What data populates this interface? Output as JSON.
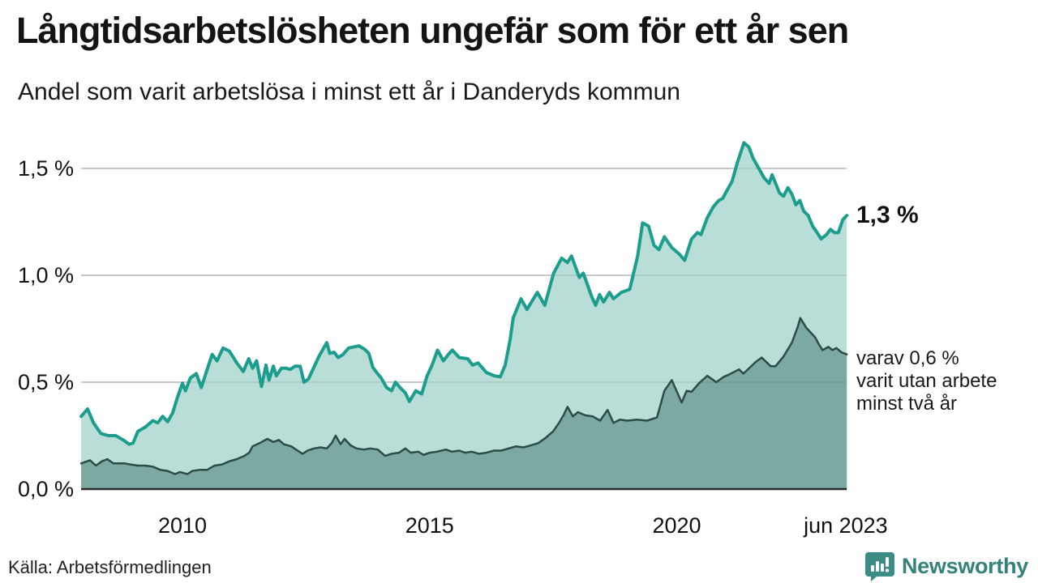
{
  "header": {
    "title": "Långtidsarbetslösheten ungefär som för ett år sen",
    "subtitle": "Andel som varit arbetslösa i minst ett år i Danderyds kommun"
  },
  "annotations": {
    "end_value_label": "1,3 %",
    "secondary_label_lines": [
      "varav 0,6 %",
      "varit utan arbete",
      "minst två år"
    ]
  },
  "footer": {
    "source": "Källa: Arbetsförmedlingen",
    "logo_text": "Newsworthy"
  },
  "colors": {
    "series1_line": "#1d9d8d",
    "series1_fill": "#b9ded8",
    "series2_line": "#2e4c46",
    "series2_fill": "#7ca9a1",
    "gridline": "#d9d9d9",
    "axis": "#2b2b2b",
    "brand_teal": "#35827b"
  },
  "chart_data": {
    "type": "area",
    "title": "Långtidsarbetslösheten ungefär som för ett år sen",
    "subtitle": "Andel som varit arbetslösa i minst ett år i Danderyds kommun",
    "unit": "%",
    "x_range": [
      2007.95,
      2023.44
    ],
    "ylim": [
      0,
      1.7
    ],
    "grid": true,
    "x_axis": {
      "ticks": [
        {
          "year": 2010,
          "label": "2010"
        },
        {
          "year": 2015,
          "label": "2015"
        },
        {
          "year": 2020,
          "label": "2020"
        },
        {
          "year": 2023.42,
          "label": "jun 2023"
        }
      ]
    },
    "y_axis": {
      "ticks": [
        {
          "value": 0,
          "label": "0,0 %"
        },
        {
          "value": 0.5,
          "label": "0,5 %"
        },
        {
          "value": 1.0,
          "label": "1,0 %"
        },
        {
          "value": 1.5,
          "label": "1,5 %"
        }
      ]
    },
    "series": [
      {
        "name": "Arbetslösa minst ett år",
        "end_value": 1.3,
        "line_color": "#1d9d8d",
        "fill_color": "#b9ded8",
        "points": [
          [
            2007.95,
            0.34
          ],
          [
            2008.08,
            0.375
          ],
          [
            2008.2,
            0.31
          ],
          [
            2008.35,
            0.26
          ],
          [
            2008.5,
            0.25
          ],
          [
            2008.65,
            0.25
          ],
          [
            2008.8,
            0.23
          ],
          [
            2008.92,
            0.21
          ],
          [
            2009.0,
            0.215
          ],
          [
            2009.1,
            0.27
          ],
          [
            2009.25,
            0.29
          ],
          [
            2009.4,
            0.32
          ],
          [
            2009.5,
            0.31
          ],
          [
            2009.6,
            0.34
          ],
          [
            2009.7,
            0.315
          ],
          [
            2009.8,
            0.355
          ],
          [
            2009.9,
            0.43
          ],
          [
            2010.0,
            0.495
          ],
          [
            2010.06,
            0.46
          ],
          [
            2010.16,
            0.52
          ],
          [
            2010.28,
            0.54
          ],
          [
            2010.38,
            0.475
          ],
          [
            2010.5,
            0.56
          ],
          [
            2010.6,
            0.63
          ],
          [
            2010.7,
            0.6
          ],
          [
            2010.82,
            0.66
          ],
          [
            2010.95,
            0.645
          ],
          [
            2011.1,
            0.59
          ],
          [
            2011.23,
            0.55
          ],
          [
            2011.34,
            0.61
          ],
          [
            2011.42,
            0.565
          ],
          [
            2011.5,
            0.6
          ],
          [
            2011.6,
            0.48
          ],
          [
            2011.69,
            0.58
          ],
          [
            2011.75,
            0.51
          ],
          [
            2011.84,
            0.575
          ],
          [
            2011.9,
            0.53
          ],
          [
            2012.0,
            0.565
          ],
          [
            2012.1,
            0.565
          ],
          [
            2012.18,
            0.56
          ],
          [
            2012.28,
            0.575
          ],
          [
            2012.38,
            0.575
          ],
          [
            2012.46,
            0.5
          ],
          [
            2012.55,
            0.515
          ],
          [
            2012.66,
            0.57
          ],
          [
            2012.76,
            0.62
          ],
          [
            2012.87,
            0.665
          ],
          [
            2012.92,
            0.685
          ],
          [
            2012.98,
            0.635
          ],
          [
            2013.07,
            0.64
          ],
          [
            2013.15,
            0.615
          ],
          [
            2013.25,
            0.63
          ],
          [
            2013.36,
            0.66
          ],
          [
            2013.47,
            0.665
          ],
          [
            2013.57,
            0.67
          ],
          [
            2013.68,
            0.655
          ],
          [
            2013.77,
            0.635
          ],
          [
            2013.85,
            0.57
          ],
          [
            2013.93,
            0.545
          ],
          [
            2014.02,
            0.52
          ],
          [
            2014.13,
            0.475
          ],
          [
            2014.23,
            0.46
          ],
          [
            2014.31,
            0.5
          ],
          [
            2014.4,
            0.475
          ],
          [
            2014.51,
            0.45
          ],
          [
            2014.59,
            0.41
          ],
          [
            2014.72,
            0.46
          ],
          [
            2014.84,
            0.445
          ],
          [
            2014.95,
            0.53
          ],
          [
            2015.05,
            0.58
          ],
          [
            2015.16,
            0.65
          ],
          [
            2015.28,
            0.6
          ],
          [
            2015.38,
            0.63
          ],
          [
            2015.46,
            0.65
          ],
          [
            2015.6,
            0.615
          ],
          [
            2015.77,
            0.61
          ],
          [
            2015.87,
            0.58
          ],
          [
            2015.98,
            0.59
          ],
          [
            2016.15,
            0.545
          ],
          [
            2016.31,
            0.53
          ],
          [
            2016.43,
            0.525
          ],
          [
            2016.53,
            0.58
          ],
          [
            2016.63,
            0.7
          ],
          [
            2016.69,
            0.8
          ],
          [
            2016.85,
            0.89
          ],
          [
            2016.97,
            0.84
          ],
          [
            2017.18,
            0.92
          ],
          [
            2017.33,
            0.86
          ],
          [
            2017.51,
            1.01
          ],
          [
            2017.67,
            1.08
          ],
          [
            2017.79,
            1.06
          ],
          [
            2017.87,
            1.09
          ],
          [
            2018.03,
            0.99
          ],
          [
            2018.11,
            1.01
          ],
          [
            2018.28,
            0.9
          ],
          [
            2018.36,
            0.86
          ],
          [
            2018.44,
            0.91
          ],
          [
            2018.52,
            0.875
          ],
          [
            2018.64,
            0.92
          ],
          [
            2018.72,
            0.89
          ],
          [
            2018.88,
            0.92
          ],
          [
            2019.05,
            0.935
          ],
          [
            2019.21,
            1.09
          ],
          [
            2019.31,
            1.245
          ],
          [
            2019.43,
            1.23
          ],
          [
            2019.54,
            1.14
          ],
          [
            2019.64,
            1.12
          ],
          [
            2019.75,
            1.18
          ],
          [
            2019.9,
            1.13
          ],
          [
            2020.05,
            1.1
          ],
          [
            2020.16,
            1.07
          ],
          [
            2020.3,
            1.17
          ],
          [
            2020.42,
            1.2
          ],
          [
            2020.49,
            1.19
          ],
          [
            2020.62,
            1.27
          ],
          [
            2020.74,
            1.32
          ],
          [
            2020.85,
            1.35
          ],
          [
            2020.93,
            1.36
          ],
          [
            2021.0,
            1.39
          ],
          [
            2021.12,
            1.44
          ],
          [
            2021.23,
            1.53
          ],
          [
            2021.36,
            1.62
          ],
          [
            2021.46,
            1.6
          ],
          [
            2021.54,
            1.55
          ],
          [
            2021.66,
            1.5
          ],
          [
            2021.77,
            1.455
          ],
          [
            2021.87,
            1.43
          ],
          [
            2021.93,
            1.47
          ],
          [
            2022.08,
            1.385
          ],
          [
            2022.16,
            1.37
          ],
          [
            2022.25,
            1.41
          ],
          [
            2022.33,
            1.38
          ],
          [
            2022.41,
            1.33
          ],
          [
            2022.49,
            1.35
          ],
          [
            2022.57,
            1.3
          ],
          [
            2022.66,
            1.28
          ],
          [
            2022.75,
            1.23
          ],
          [
            2022.84,
            1.2
          ],
          [
            2022.92,
            1.17
          ],
          [
            2023.03,
            1.19
          ],
          [
            2023.11,
            1.215
          ],
          [
            2023.19,
            1.2
          ],
          [
            2023.27,
            1.2
          ],
          [
            2023.36,
            1.26
          ],
          [
            2023.44,
            1.28
          ]
        ]
      },
      {
        "name": "varav arbetslösa minst två år",
        "end_value": 0.6,
        "line_color": "#2e4c46",
        "fill_color": "#7ca9a1",
        "points": [
          [
            2007.95,
            0.12
          ],
          [
            2008.13,
            0.135
          ],
          [
            2008.25,
            0.11
          ],
          [
            2008.37,
            0.13
          ],
          [
            2008.48,
            0.14
          ],
          [
            2008.6,
            0.12
          ],
          [
            2008.72,
            0.12
          ],
          [
            2008.83,
            0.12
          ],
          [
            2008.95,
            0.115
          ],
          [
            2009.1,
            0.11
          ],
          [
            2009.25,
            0.11
          ],
          [
            2009.4,
            0.105
          ],
          [
            2009.55,
            0.09
          ],
          [
            2009.7,
            0.085
          ],
          [
            2009.85,
            0.07
          ],
          [
            2009.95,
            0.08
          ],
          [
            2010.1,
            0.07
          ],
          [
            2010.2,
            0.085
          ],
          [
            2010.35,
            0.09
          ],
          [
            2010.5,
            0.09
          ],
          [
            2010.65,
            0.11
          ],
          [
            2010.8,
            0.115
          ],
          [
            2010.95,
            0.13
          ],
          [
            2011.1,
            0.14
          ],
          [
            2011.25,
            0.155
          ],
          [
            2011.35,
            0.17
          ],
          [
            2011.42,
            0.2
          ],
          [
            2011.56,
            0.215
          ],
          [
            2011.72,
            0.235
          ],
          [
            2011.84,
            0.22
          ],
          [
            2011.95,
            0.23
          ],
          [
            2012.05,
            0.21
          ],
          [
            2012.2,
            0.2
          ],
          [
            2012.33,
            0.18
          ],
          [
            2012.43,
            0.165
          ],
          [
            2012.53,
            0.18
          ],
          [
            2012.66,
            0.19
          ],
          [
            2012.79,
            0.195
          ],
          [
            2012.92,
            0.19
          ],
          [
            2013.02,
            0.215
          ],
          [
            2013.1,
            0.25
          ],
          [
            2013.2,
            0.21
          ],
          [
            2013.28,
            0.235
          ],
          [
            2013.4,
            0.205
          ],
          [
            2013.52,
            0.19
          ],
          [
            2013.67,
            0.185
          ],
          [
            2013.8,
            0.19
          ],
          [
            2013.95,
            0.185
          ],
          [
            2014.1,
            0.155
          ],
          [
            2014.23,
            0.165
          ],
          [
            2014.38,
            0.17
          ],
          [
            2014.51,
            0.19
          ],
          [
            2014.62,
            0.17
          ],
          [
            2014.77,
            0.175
          ],
          [
            2014.88,
            0.16
          ],
          [
            2015.0,
            0.17
          ],
          [
            2015.15,
            0.175
          ],
          [
            2015.33,
            0.185
          ],
          [
            2015.45,
            0.175
          ],
          [
            2015.6,
            0.18
          ],
          [
            2015.72,
            0.17
          ],
          [
            2015.85,
            0.175
          ],
          [
            2016.0,
            0.165
          ],
          [
            2016.15,
            0.17
          ],
          [
            2016.3,
            0.18
          ],
          [
            2016.45,
            0.18
          ],
          [
            2016.6,
            0.19
          ],
          [
            2016.75,
            0.2
          ],
          [
            2016.9,
            0.195
          ],
          [
            2017.05,
            0.205
          ],
          [
            2017.2,
            0.215
          ],
          [
            2017.35,
            0.24
          ],
          [
            2017.5,
            0.27
          ],
          [
            2017.62,
            0.31
          ],
          [
            2017.72,
            0.35
          ],
          [
            2017.79,
            0.385
          ],
          [
            2017.9,
            0.34
          ],
          [
            2018.0,
            0.36
          ],
          [
            2018.15,
            0.345
          ],
          [
            2018.3,
            0.34
          ],
          [
            2018.45,
            0.32
          ],
          [
            2018.6,
            0.37
          ],
          [
            2018.72,
            0.31
          ],
          [
            2018.85,
            0.325
          ],
          [
            2019.0,
            0.32
          ],
          [
            2019.2,
            0.325
          ],
          [
            2019.4,
            0.32
          ],
          [
            2019.6,
            0.335
          ],
          [
            2019.75,
            0.46
          ],
          [
            2019.9,
            0.51
          ],
          [
            2020.1,
            0.405
          ],
          [
            2020.2,
            0.46
          ],
          [
            2020.3,
            0.455
          ],
          [
            2020.45,
            0.495
          ],
          [
            2020.62,
            0.53
          ],
          [
            2020.8,
            0.5
          ],
          [
            2020.95,
            0.525
          ],
          [
            2021.05,
            0.535
          ],
          [
            2021.26,
            0.56
          ],
          [
            2021.35,
            0.54
          ],
          [
            2021.6,
            0.595
          ],
          [
            2021.72,
            0.615
          ],
          [
            2021.9,
            0.575
          ],
          [
            2022.0,
            0.575
          ],
          [
            2022.16,
            0.62
          ],
          [
            2022.33,
            0.685
          ],
          [
            2022.45,
            0.76
          ],
          [
            2022.5,
            0.8
          ],
          [
            2022.62,
            0.755
          ],
          [
            2022.7,
            0.735
          ],
          [
            2022.8,
            0.71
          ],
          [
            2022.87,
            0.68
          ],
          [
            2022.95,
            0.65
          ],
          [
            2023.07,
            0.665
          ],
          [
            2023.15,
            0.65
          ],
          [
            2023.23,
            0.66
          ],
          [
            2023.33,
            0.64
          ],
          [
            2023.44,
            0.63
          ]
        ]
      }
    ],
    "legend_position": "none",
    "annotations": [
      {
        "text": "1,3 %",
        "series": 0,
        "position": "end"
      },
      {
        "text": "varav 0,6 % varit utan arbete minst två år",
        "series": 1,
        "position": "end"
      }
    ]
  }
}
